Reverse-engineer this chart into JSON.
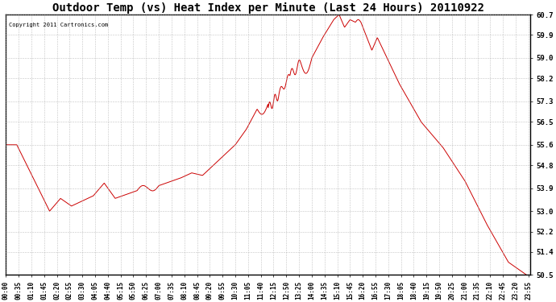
{
  "title": "Outdoor Temp (vs) Heat Index per Minute (Last 24 Hours) 20110922",
  "copyright": "Copyright 2011 Cartronics.com",
  "line_color": "#cc0000",
  "background_color": "#ffffff",
  "grid_color": "#aaaaaa",
  "border_color": "#000000",
  "title_fontsize": 10,
  "ylim_min": 50.5,
  "ylim_max": 60.7,
  "yticks": [
    60.7,
    59.9,
    59.0,
    58.2,
    57.3,
    56.5,
    55.6,
    54.8,
    53.9,
    53.0,
    52.2,
    51.4,
    50.5
  ],
  "xtick_labels": [
    "00:00",
    "00:35",
    "01:10",
    "01:45",
    "02:20",
    "02:55",
    "03:30",
    "04:05",
    "04:40",
    "05:15",
    "05:50",
    "06:25",
    "07:00",
    "07:35",
    "08:10",
    "08:45",
    "09:20",
    "09:55",
    "10:30",
    "11:05",
    "11:40",
    "12:15",
    "12:50",
    "13:25",
    "14:00",
    "14:35",
    "15:10",
    "15:45",
    "16:20",
    "16:55",
    "17:30",
    "18:05",
    "18:40",
    "19:15",
    "19:50",
    "20:25",
    "21:00",
    "21:35",
    "22:10",
    "22:45",
    "23:20",
    "23:55"
  ]
}
